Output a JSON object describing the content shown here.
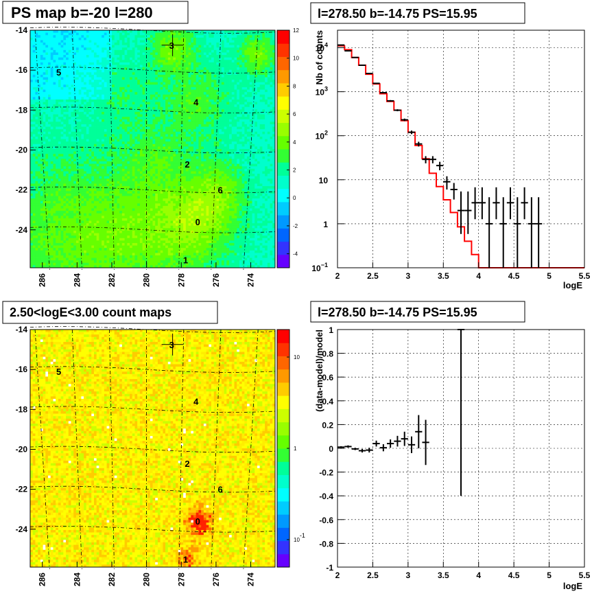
{
  "panels": {
    "map_top": {
      "title": "PS map b=-20 l=280",
      "x_ticks": [
        "286",
        "284",
        "282",
        "280",
        "278",
        "276",
        "274"
      ],
      "y_ticks": [
        "-14",
        "-16",
        "-18",
        "-20",
        "-22",
        "-24"
      ],
      "colorbar_ticks": [
        "12",
        "10",
        "8",
        "6",
        "4",
        "2",
        "0",
        "-2",
        "-4"
      ],
      "sources": [
        {
          "label": "0",
          "l": 277.0,
          "b": -23.6
        },
        {
          "label": "1",
          "l": 277.7,
          "b": -25.5
        },
        {
          "label": "2",
          "l": 277.6,
          "b": -20.7
        },
        {
          "label": "3",
          "l": 278.5,
          "b": -14.75
        },
        {
          "label": "4",
          "l": 277.1,
          "b": -17.6
        },
        {
          "label": "5",
          "l": 285.0,
          "b": -16.1
        },
        {
          "label": "6",
          "l": 275.7,
          "b": -22.0
        }
      ]
    },
    "spectrum": {
      "title": "l=278.50 b=-14.75 PS=15.95",
      "xlabel": "logE",
      "ylabel": "Nb of counts",
      "x_ticks": [
        "2",
        "2.5",
        "3",
        "3.5",
        "4",
        "4.5",
        "5",
        "5.5"
      ],
      "y_ticks": [
        "10",
        "1",
        "10"
      ],
      "y_tick_sup": [
        "4",
        "3",
        "2",
        "",
        "",
        "−1"
      ]
    },
    "map_bottom": {
      "title": "2.50<logE<3.00 count maps",
      "x_ticks": [
        "286",
        "284",
        "282",
        "280",
        "278",
        "276",
        "274"
      ],
      "y_ticks": [
        "-14",
        "-16",
        "-18",
        "-20",
        "-22",
        "-24"
      ],
      "colorbar_ticks": [
        "10",
        "1",
        "10"
      ],
      "colorbar_sup": [
        "",
        "",
        "-1"
      ]
    },
    "residual": {
      "title": "l=278.50 b=-14.75 PS=15.95",
      "xlabel": "logE",
      "ylabel": "(data-model)/model",
      "x_ticks": [
        "2",
        "2.5",
        "3",
        "3.5",
        "4",
        "4.5",
        "5",
        "5.5"
      ],
      "y_ticks": [
        "1",
        "0.8",
        "0.6",
        "0.4",
        "0.2",
        "0",
        "-0.2",
        "-0.4",
        "-0.6",
        "-0.8",
        "-1"
      ]
    }
  },
  "colors": {
    "model_line": "#ff0000",
    "data_points": "#000000",
    "grid": "#000000"
  },
  "chart_data": [
    {
      "type": "heatmap",
      "title": "PS map b=-20 l=280",
      "xlim": [
        286.7,
        272.6
      ],
      "ylim": [
        -25.9,
        -14.0
      ],
      "zlim": [
        -5,
        12
      ],
      "x_ticks": [
        286,
        284,
        282,
        280,
        278,
        276,
        274
      ],
      "y_ticks": [
        -14,
        -16,
        -18,
        -20,
        -22,
        -24
      ],
      "grid": true
    },
    {
      "type": "line",
      "title": "l=278.50 b=-14.75 PS=15.95",
      "xlabel": "logE",
      "ylabel": "Nb of counts",
      "xlim": [
        2.0,
        5.5
      ],
      "ylim": [
        0.1,
        25000
      ],
      "yscale": "log",
      "grid": true,
      "series": [
        {
          "x": [
            2.05,
            2.15,
            2.25,
            2.35,
            2.45,
            2.55,
            2.65,
            2.75,
            2.85,
            2.95,
            3.05,
            3.15,
            3.25,
            3.35,
            3.45,
            3.55,
            3.65,
            3.75,
            3.85,
            3.95,
            4.05,
            4.15,
            4.25,
            4.35,
            4.45,
            4.55,
            4.65,
            4.75,
            4.85,
            4.95,
            5.05,
            5.15,
            5.25,
            5.35,
            5.45
          ],
          "y": [
            11000,
            9000,
            6000,
            4000,
            2500,
            1500,
            900,
            600,
            380,
            220,
            120,
            60,
            30,
            14,
            7,
            3.5,
            1.8,
            0.85,
            0.4,
            0.2,
            0.1,
            0.1,
            0.1,
            0.1,
            0.1,
            0.1,
            0.1,
            0.1,
            0.1,
            0.1,
            0.1,
            0.1,
            0.1,
            0.1,
            0.1
          ]
        },
        {
          "x": [
            2.05,
            2.15,
            2.25,
            2.35,
            2.45,
            2.55,
            2.65,
            2.75,
            2.85,
            2.95,
            3.05,
            3.15,
            3.25,
            3.35,
            3.45,
            3.55,
            3.65,
            3.75,
            3.85,
            3.95,
            4.05,
            4.15,
            4.25,
            4.35,
            4.45,
            4.55,
            4.65,
            4.75,
            4.85
          ],
          "y": [
            11500,
            8500,
            6000,
            4000,
            2600,
            1550,
            950,
            620,
            380,
            230,
            120,
            65,
            29,
            29,
            21,
            9,
            6,
            2,
            2,
            3,
            3,
            1,
            3,
            1,
            3,
            1,
            3,
            1,
            1
          ]
        }
      ]
    },
    {
      "type": "heatmap",
      "title": "2.50<logE<3.00 count maps",
      "xlim": [
        286.7,
        272.6
      ],
      "ylim": [
        -25.9,
        -14.0
      ],
      "zscale": "log",
      "zlim": [
        0.05,
        20
      ],
      "x_ticks": [
        286,
        284,
        282,
        280,
        278,
        276,
        274
      ],
      "y_ticks": [
        -14,
        -16,
        -18,
        -20,
        -22,
        -24
      ],
      "grid": true
    },
    {
      "type": "scatter",
      "title": "l=278.50 b=-14.75 PS=15.95",
      "xlabel": "logE",
      "ylabel": "(data-model)/model",
      "xlim": [
        2.0,
        5.5
      ],
      "ylim": [
        -1,
        1
      ],
      "grid": true,
      "series": [
        {
          "x": [
            2.05,
            2.15,
            2.25,
            2.35,
            2.45,
            2.55,
            2.65,
            2.75,
            2.85,
            2.95,
            3.05,
            3.15,
            3.25,
            3.75
          ],
          "y": [
            0.01,
            0.015,
            -0.005,
            -0.02,
            -0.015,
            0.04,
            0.005,
            0.04,
            0.06,
            0.08,
            0.03,
            0.14,
            0.05,
            1.0
          ],
          "yerr": [
            0.008,
            0.01,
            0.01,
            0.015,
            0.02,
            0.025,
            0.03,
            0.035,
            0.045,
            0.06,
            0.07,
            0.14,
            0.19,
            1.4
          ]
        }
      ]
    }
  ]
}
